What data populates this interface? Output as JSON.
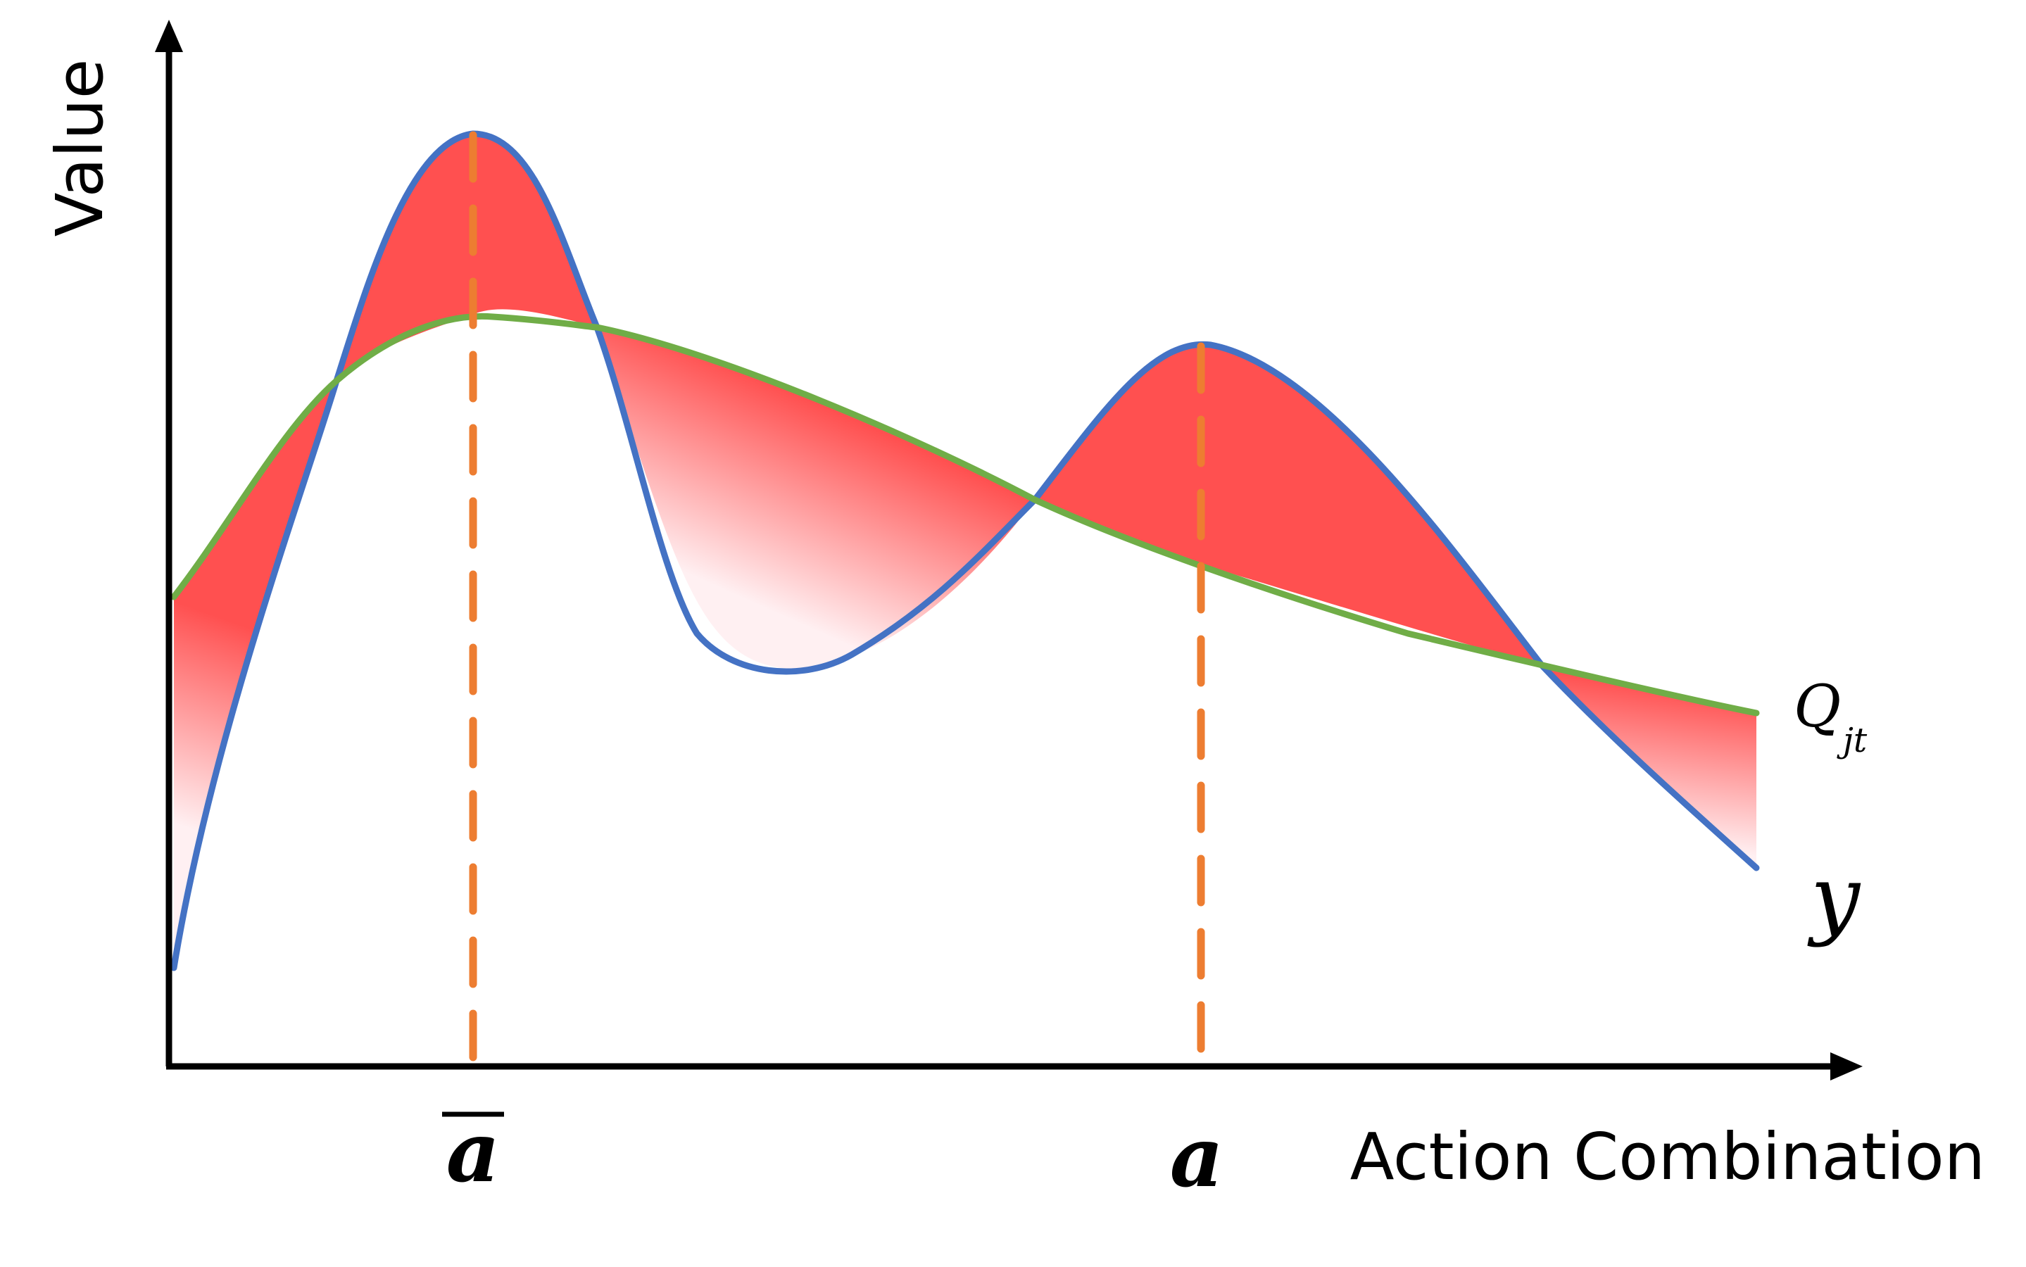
{
  "figure": {
    "y_axis_label": "Value",
    "x_axis_label": "Action Combination",
    "marker_left_label": "a",
    "marker_right_label": "a",
    "curve_q_label": "Q",
    "curve_q_subscript": "jt",
    "curve_y_label": "y"
  },
  "colors": {
    "axis": "#000000",
    "y_curve": "#4472C4",
    "q_curve": "#70AD47",
    "markers": "#ED7D31",
    "fill_strong": "#FF5050",
    "fill_faint": "#FFF0F2"
  }
}
